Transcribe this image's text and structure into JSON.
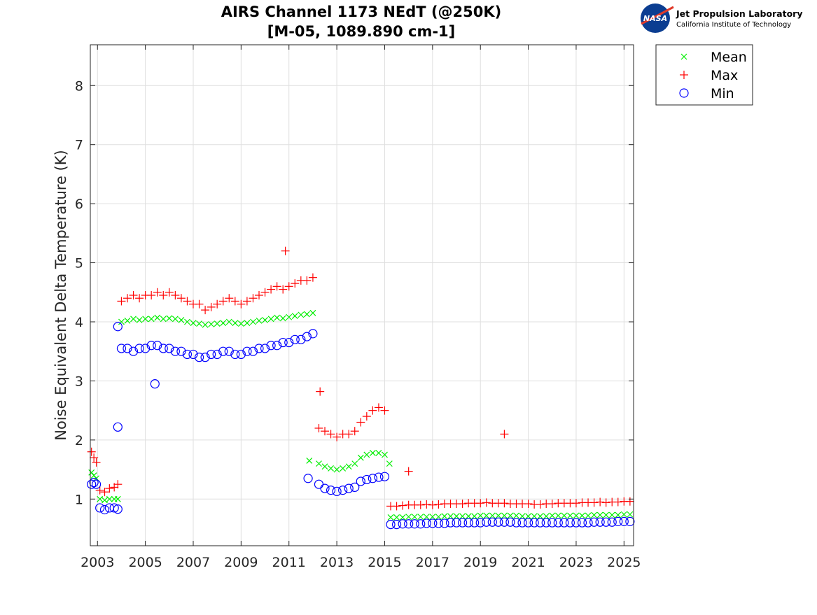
{
  "logo": {
    "org": "Jet Propulsion Laboratory",
    "sub": "California Institute of Technology",
    "badge": "NASA"
  },
  "colors": {
    "mean": "#00ee00",
    "max": "#ff0000",
    "min": "#0000ff",
    "logo_blue": "#0b3d91"
  },
  "chart_data": {
    "type": "scatter",
    "title": [
      "AIRS Channel 1173 NEdT (@250K)",
      "[M-05, 1089.890 cm-1]"
    ],
    "xlabel": "",
    "ylabel": "Noise Equivalent Delta Temperature (K)",
    "xlim": [
      2002.7,
      2025.4
    ],
    "ylim": [
      0.21,
      8.69
    ],
    "xticks": [
      2003,
      2005,
      2007,
      2009,
      2011,
      2013,
      2015,
      2017,
      2019,
      2021,
      2023,
      2025
    ],
    "yticks": [
      1,
      2,
      3,
      4,
      5,
      6,
      7,
      8
    ],
    "grid": true,
    "legend": {
      "placement": "outside-top-right",
      "entries": [
        {
          "name": "Mean",
          "marker": "x"
        },
        {
          "name": "Max",
          "marker": "+"
        },
        {
          "name": "Min",
          "marker": "o"
        }
      ]
    },
    "segments": [
      {
        "x": [
          2002.75,
          2002.85,
          2002.95
        ],
        "mean": [
          1.45,
          1.4,
          1.35
        ],
        "max": [
          1.8,
          1.7,
          1.62
        ],
        "min": [
          1.25,
          1.28,
          1.25
        ]
      },
      {
        "x": [
          2003.1,
          2003.3,
          2003.5,
          2003.7,
          2003.85
        ],
        "mean": [
          1.0,
          0.98,
          1.0,
          1.0,
          1.0
        ],
        "max": [
          1.15,
          1.12,
          1.18,
          1.2,
          1.25
        ],
        "min": [
          0.85,
          0.82,
          0.85,
          0.85,
          0.83
        ]
      },
      {
        "x": [
          2004.0,
          2004.25,
          2004.5,
          2004.75,
          2005.0,
          2005.25,
          2005.5,
          2005.75,
          2006.0,
          2006.25,
          2006.5,
          2006.75,
          2007.0,
          2007.25,
          2007.5,
          2007.75,
          2008.0,
          2008.25,
          2008.5,
          2008.75,
          2009.0,
          2009.25,
          2009.5,
          2009.75,
          2010.0,
          2010.25,
          2010.5,
          2010.75,
          2011.0,
          2011.25,
          2011.5,
          2011.75,
          2012.0
        ],
        "mean": [
          4.0,
          4.02,
          4.05,
          4.03,
          4.05,
          4.05,
          4.07,
          4.05,
          4.06,
          4.05,
          4.03,
          4.0,
          3.98,
          3.97,
          3.95,
          3.96,
          3.97,
          3.98,
          4.0,
          3.98,
          3.97,
          3.98,
          4.0,
          4.02,
          4.03,
          4.05,
          4.07,
          4.06,
          4.08,
          4.1,
          4.12,
          4.13,
          4.15
        ],
        "max": [
          4.35,
          4.4,
          4.45,
          4.4,
          4.45,
          4.45,
          4.5,
          4.45,
          4.5,
          4.45,
          4.4,
          4.35,
          4.3,
          4.3,
          4.2,
          4.25,
          4.3,
          4.35,
          4.4,
          4.35,
          4.3,
          4.35,
          4.4,
          4.45,
          4.5,
          4.55,
          4.6,
          4.55,
          4.6,
          4.65,
          4.7,
          4.7,
          4.75
        ],
        "min": [
          3.55,
          3.55,
          3.5,
          3.55,
          3.55,
          3.6,
          3.6,
          3.55,
          3.55,
          3.5,
          3.5,
          3.45,
          3.45,
          3.4,
          3.4,
          3.45,
          3.45,
          3.5,
          3.5,
          3.45,
          3.45,
          3.5,
          3.5,
          3.55,
          3.55,
          3.6,
          3.6,
          3.65,
          3.65,
          3.7,
          3.7,
          3.75,
          3.8
        ]
      },
      {
        "x": [
          2012.25,
          2012.5,
          2012.75,
          2013.0,
          2013.25,
          2013.5,
          2013.75
        ],
        "mean": [
          1.6,
          1.55,
          1.52,
          1.5,
          1.52,
          1.55,
          1.6
        ],
        "max": [
          2.2,
          2.15,
          2.1,
          2.05,
          2.1,
          2.1,
          2.15
        ],
        "min": [
          1.25,
          1.18,
          1.15,
          1.13,
          1.15,
          1.18,
          1.2
        ]
      },
      {
        "x": [
          2014.0,
          2014.25,
          2014.5,
          2014.75,
          2015.0
        ],
        "mean": [
          1.7,
          1.75,
          1.78,
          1.78,
          1.75
        ],
        "max": [
          2.3,
          2.4,
          2.5,
          2.55,
          2.5
        ],
        "min": [
          1.3,
          1.33,
          1.35,
          1.37,
          1.38
        ]
      },
      {
        "x": [
          2015.25,
          2015.5,
          2015.75,
          2016.0,
          2016.25,
          2016.5,
          2016.75,
          2017.0,
          2017.25,
          2017.5,
          2017.75,
          2018.0,
          2018.25,
          2018.5,
          2018.75,
          2019.0,
          2019.25,
          2019.5,
          2019.75,
          2020.0,
          2020.25,
          2020.5,
          2020.75,
          2021.0,
          2021.25,
          2021.5,
          2021.75,
          2022.0,
          2022.25,
          2022.5,
          2022.75,
          2023.0,
          2023.25,
          2023.5,
          2023.75,
          2024.0,
          2024.25,
          2024.5,
          2024.75,
          2025.0,
          2025.25
        ],
        "mean": [
          0.69,
          0.69,
          0.69,
          0.7,
          0.7,
          0.7,
          0.7,
          0.7,
          0.7,
          0.71,
          0.71,
          0.71,
          0.71,
          0.71,
          0.71,
          0.72,
          0.72,
          0.72,
          0.72,
          0.72,
          0.72,
          0.72,
          0.71,
          0.71,
          0.71,
          0.71,
          0.71,
          0.72,
          0.72,
          0.72,
          0.72,
          0.72,
          0.72,
          0.72,
          0.73,
          0.73,
          0.73,
          0.73,
          0.73,
          0.74,
          0.74
        ],
        "max": [
          0.88,
          0.88,
          0.89,
          0.9,
          0.9,
          0.9,
          0.91,
          0.9,
          0.91,
          0.92,
          0.92,
          0.92,
          0.92,
          0.93,
          0.93,
          0.93,
          0.94,
          0.93,
          0.93,
          0.93,
          0.92,
          0.92,
          0.92,
          0.92,
          0.91,
          0.91,
          0.92,
          0.92,
          0.93,
          0.93,
          0.93,
          0.93,
          0.94,
          0.94,
          0.94,
          0.95,
          0.94,
          0.95,
          0.95,
          0.96,
          0.96
        ],
        "min": [
          0.57,
          0.57,
          0.58,
          0.58,
          0.58,
          0.58,
          0.59,
          0.59,
          0.59,
          0.59,
          0.6,
          0.6,
          0.6,
          0.6,
          0.6,
          0.6,
          0.61,
          0.61,
          0.61,
          0.61,
          0.61,
          0.6,
          0.6,
          0.6,
          0.6,
          0.6,
          0.6,
          0.6,
          0.6,
          0.6,
          0.6,
          0.6,
          0.6,
          0.6,
          0.61,
          0.61,
          0.61,
          0.61,
          0.62,
          0.62,
          0.62
        ]
      }
    ],
    "outliers": [
      {
        "series": "Max",
        "x": 2020.0,
        "y": 2.1
      },
      {
        "series": "Max",
        "x": 2016.0,
        "y": 1.47
      },
      {
        "series": "Max",
        "x": 2012.3,
        "y": 2.82
      },
      {
        "series": "Max",
        "x": 2010.85,
        "y": 5.2
      },
      {
        "series": "Min",
        "x": 2005.4,
        "y": 2.95
      },
      {
        "series": "Min",
        "x": 2003.85,
        "y": 2.22
      },
      {
        "series": "Min",
        "x": 2003.85,
        "y": 3.92
      },
      {
        "series": "Min",
        "x": 2011.8,
        "y": 1.35
      },
      {
        "series": "Mean",
        "x": 2011.85,
        "y": 1.65
      },
      {
        "series": "Mean",
        "x": 2015.2,
        "y": 1.6
      }
    ]
  }
}
